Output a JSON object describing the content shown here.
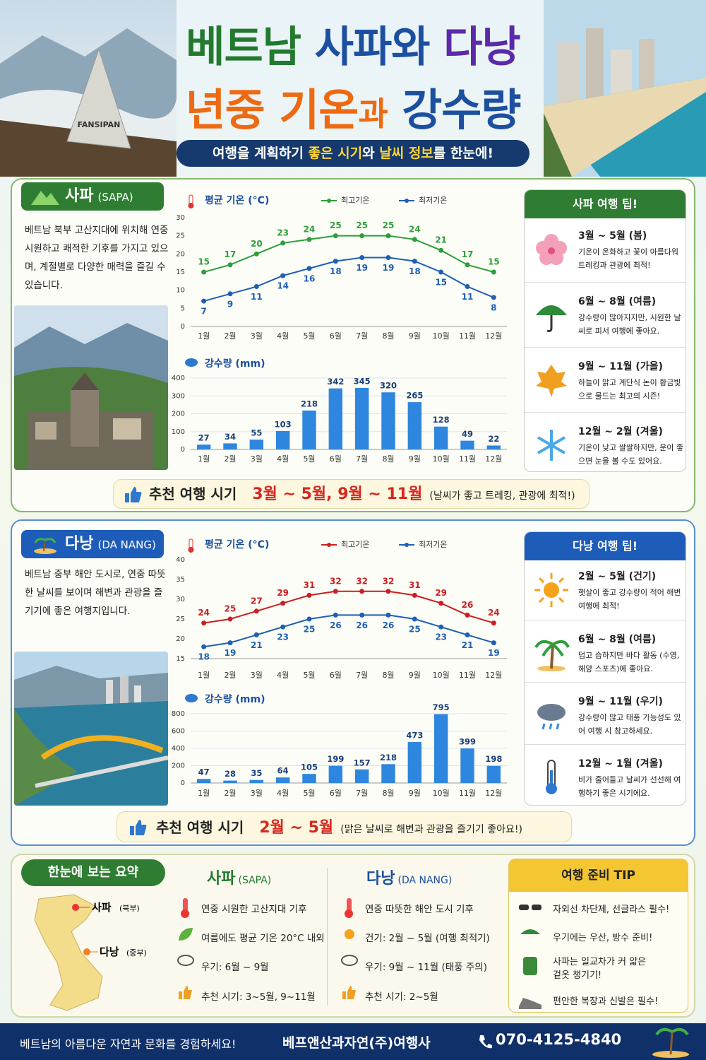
{
  "header": {
    "title_line1": [
      "베트남",
      "사파와",
      "다낭"
    ],
    "title_line2": [
      "년중 기온",
      "과",
      "강수량"
    ],
    "subtitle": [
      "여행을 계획하기 ",
      "좋은 시기",
      "와 ",
      "날씨 정보",
      "를 한눈에!"
    ]
  },
  "sapa": {
    "name": "사파",
    "name_en": "(SAPA)",
    "description": "베트남 북부 고산지대에 위치해 연중 시원하고 쾌적한 기후를 가지고 있으며, 계절별로 다양한 매력을 즐길 수 있습니다.",
    "tips_title": "사파 여행 팁!",
    "tips": [
      {
        "period": "3월 ~ 5월 (봄)",
        "text": "기온이 온화하고 꽃이 아름다워 트레킹과 관광에 최적!"
      },
      {
        "period": "6월 ~ 8월 (여름)",
        "text": "강수량이 많아지지만, 시원한 날씨로 피서 여행에 좋아요."
      },
      {
        "period": "9월 ~ 11월 (가을)",
        "text": "하늘이 맑고 계단식 논이 황금빛으로 물드는 최고의 시즌!"
      },
      {
        "period": "12월 ~ 2월 (겨울)",
        "text": "기온이 낮고 쌀쌀하지만, 운이 좋으면 눈을 볼 수도 있어요."
      }
    ],
    "recommend": {
      "label": "추천 여행 시기",
      "period": "3월 ~ 5월, 9월 ~ 11월",
      "note": "(날씨가 좋고 트레킹, 관광에 최적!)"
    }
  },
  "danang": {
    "name": "다낭",
    "name_en": "(DA NANG)",
    "description": "베트남 중부 해안 도시로, 연중 따뜻한 날씨를 보이며 해변과 관광을 즐기기에 좋은 여행지입니다.",
    "tips_title": "다낭 여행 팁!",
    "tips": [
      {
        "period": "2월 ~ 5월 (건기)",
        "text": "햇살이 좋고 강수량이 적어 해변 여행에 최적!"
      },
      {
        "period": "6월 ~ 8월 (여름)",
        "text": "덥고 습하지만 바다 활동 (수영, 해양 스포츠)에 좋아요."
      },
      {
        "period": "9월 ~ 11월 (우기)",
        "text": "강수량이 많고 태풍 가능성도 있어 여행 시 참고하세요."
      },
      {
        "period": "12월 ~ 1월 (겨울)",
        "text": "비가 줄어들고 날씨가 선선해 여행하기 좋은 시기에요."
      }
    ],
    "recommend": {
      "label": "추천 여행 시기",
      "period": "2월 ~ 5월",
      "note": "(맑은 날씨로 해변과 관광을 즐기기 좋아요!)"
    }
  },
  "chart_data": [
    {
      "type": "line",
      "title": "평균 기온 (°C)",
      "categories": [
        "1월",
        "2월",
        "3월",
        "4월",
        "5월",
        "6월",
        "7월",
        "8월",
        "9월",
        "10월",
        "11월",
        "12월"
      ],
      "series": [
        {
          "name": "최고기온",
          "color": "#2e9e3a",
          "values": [
            15,
            17,
            20,
            23,
            24,
            25,
            25,
            25,
            24,
            21,
            17,
            15
          ]
        },
        {
          "name": "최저기온",
          "color": "#1f5fb4",
          "values": [
            7,
            9,
            11,
            14,
            16,
            18,
            19,
            19,
            18,
            15,
            11,
            8
          ]
        }
      ],
      "ylim": [
        0,
        30
      ],
      "yticks": [
        0,
        5,
        10,
        15,
        20,
        25,
        30
      ],
      "grid": false
    },
    {
      "type": "bar",
      "title": "강수량 (mm)",
      "categories": [
        "1월",
        "2월",
        "3월",
        "4월",
        "5월",
        "6월",
        "7월",
        "8월",
        "9월",
        "10월",
        "11월",
        "12월"
      ],
      "values": [
        27,
        34,
        55,
        103,
        218,
        342,
        345,
        320,
        265,
        128,
        49,
        22
      ],
      "color": "#2f86de",
      "ylim": [
        0,
        400
      ],
      "yticks": [
        0,
        100,
        200,
        300,
        400
      ],
      "grid": true
    },
    {
      "type": "line",
      "title": "평균 기온 (°C)",
      "categories": [
        "1월",
        "2월",
        "3월",
        "4월",
        "5월",
        "6월",
        "7월",
        "8월",
        "9월",
        "10월",
        "11월",
        "12월"
      ],
      "series": [
        {
          "name": "최고기온",
          "color": "#cc1f1f",
          "values": [
            24,
            25,
            27,
            29,
            31,
            32,
            32,
            32,
            31,
            29,
            26,
            24
          ]
        },
        {
          "name": "최저기온",
          "color": "#1f5fb4",
          "values": [
            18,
            19,
            21,
            23,
            25,
            26,
            26,
            26,
            25,
            23,
            21,
            19
          ]
        }
      ],
      "ylim": [
        15,
        40
      ],
      "yticks": [
        15,
        20,
        25,
        30,
        35,
        40
      ],
      "grid": false
    },
    {
      "type": "bar",
      "title": "강수량 (mm)",
      "categories": [
        "1월",
        "2월",
        "3월",
        "4월",
        "5월",
        "6월",
        "7월",
        "8월",
        "9월",
        "10월",
        "11월",
        "12월"
      ],
      "values": [
        47,
        28,
        35,
        64,
        105,
        199,
        157,
        218,
        473,
        795,
        399,
        198
      ],
      "color": "#2f86de",
      "ylim": [
        0,
        800
      ],
      "yticks": [
        0,
        200,
        400,
        600,
        800
      ],
      "grid": true
    }
  ],
  "summary": {
    "title": "한눈에 보는 요약",
    "map": {
      "sapa": "사파",
      "sapa_region": "(북부)",
      "danang": "다낭",
      "danang_region": "(중부)"
    },
    "sapa": {
      "name": "사파",
      "name_en": "(SAPA)",
      "items": [
        "연중 시원한 고산지대 기후",
        "여름에도 평균 기온 20°C 내외",
        "우기: 6월 ~ 9월",
        "추천 시기: 3~5월, 9~11월"
      ]
    },
    "danang": {
      "name": "다낭",
      "name_en": "(DA NANG)",
      "items": [
        "연중 따뜻한 해안 도시 기후",
        "건기: 2월 ~ 5월 (여행 최적기)",
        "우기: 9월 ~ 11월 (태풍 주의)",
        "추천 시기: 2~5월"
      ]
    },
    "tip_title": "여행 준비 TIP",
    "tips": [
      "자외선 차단제, 선글라스 필수!",
      "우기에는 우산, 방수 준비!",
      "사파는 일교차가 커 얇은 겉옷 챙기기!",
      "편안한 복장과 신발은 필수!"
    ]
  },
  "footer": {
    "slogan": "베트남의 아름다운 자연과 문화를 경험하세요!",
    "company": "베프앤산과자연(주)여행사",
    "phone": "070-4125-4840"
  }
}
